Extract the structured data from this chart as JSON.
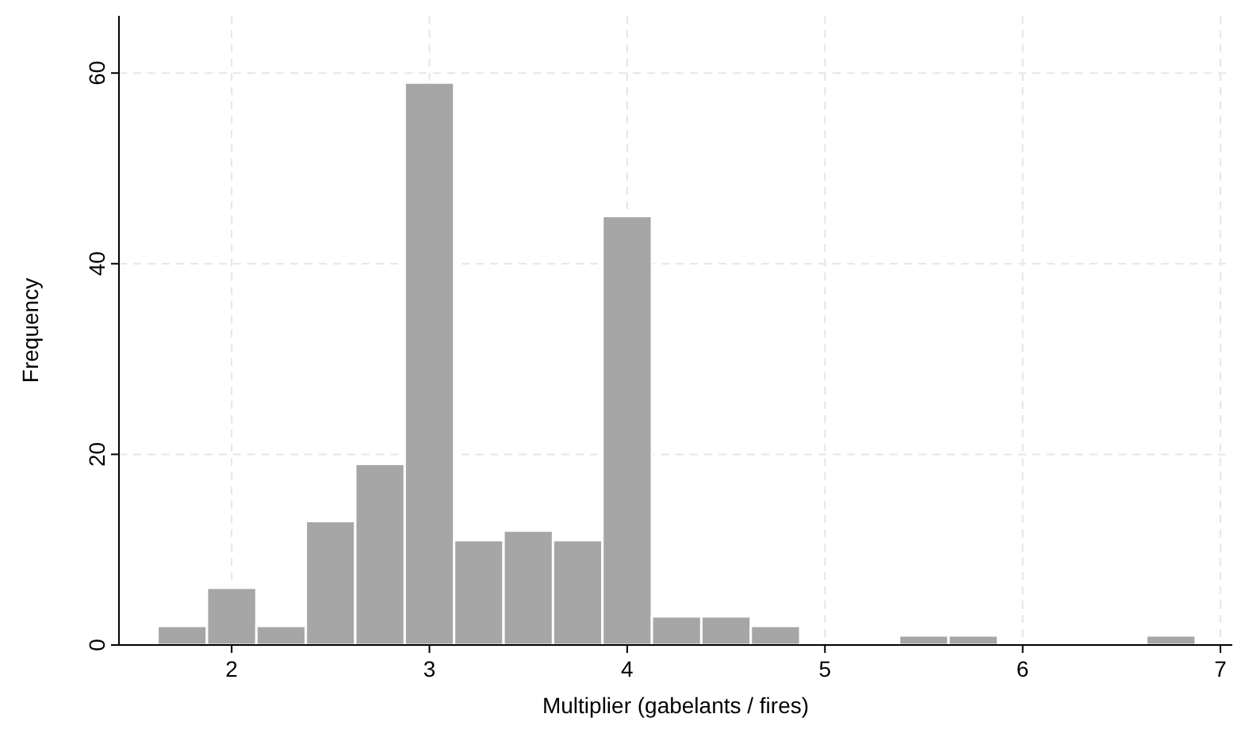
{
  "chart_data": {
    "type": "histogram",
    "xlabel": "Multiplier (gabelants / fires)",
    "ylabel": "Frequency",
    "bins": [
      1.625,
      1.875,
      2.125,
      2.375,
      2.625,
      2.875,
      3.125,
      3.375,
      3.625,
      3.875,
      4.125,
      4.375,
      4.625,
      4.875,
      5.125,
      5.375,
      5.625,
      5.875,
      6.125,
      6.375,
      6.625,
      6.875
    ],
    "values": [
      2,
      6,
      2,
      13,
      19,
      59,
      11,
      12,
      11,
      45,
      3,
      3,
      2,
      0,
      0,
      1,
      1,
      0,
      0,
      0,
      1
    ],
    "color": "#a6a6a6",
    "xlim": [
      1.43,
      7.06
    ],
    "ylim": [
      0,
      66
    ],
    "xticks": [
      2,
      3,
      4,
      5,
      6,
      7
    ],
    "yticks": [
      0,
      20,
      40,
      60
    ],
    "grid": true
  }
}
